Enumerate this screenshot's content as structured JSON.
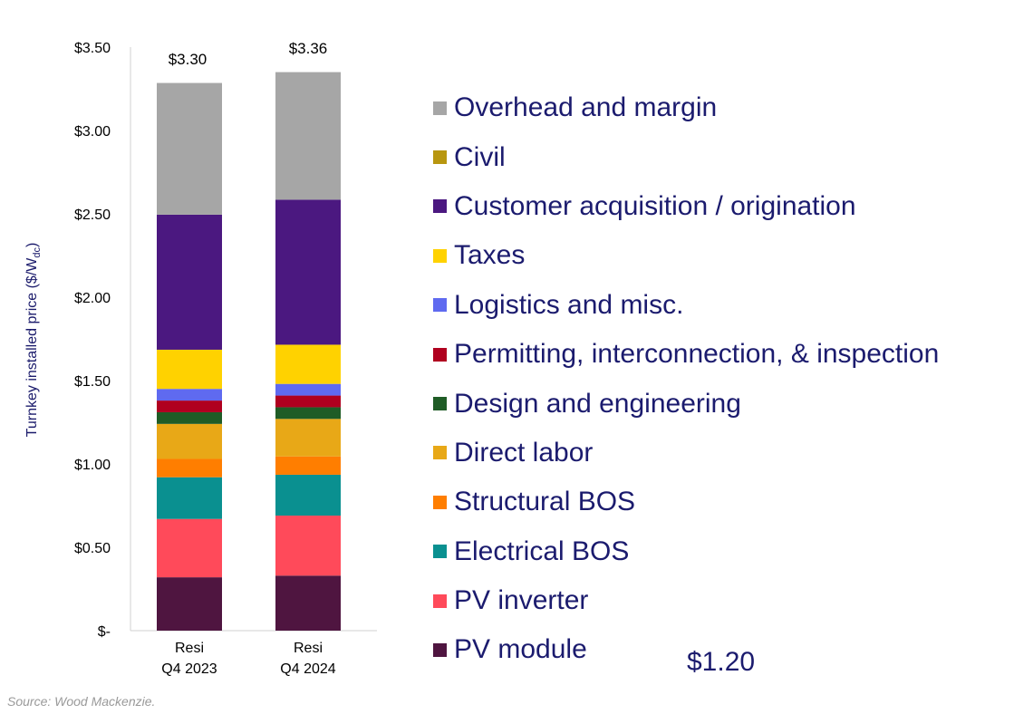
{
  "chart_data": {
    "type": "bar",
    "stacked": true,
    "ylabel": "Turnkey installed price ($/W",
    "ylabel_sub": "dc",
    "ylabel_close": ")",
    "ylim": [
      0,
      3.5
    ],
    "y_ticks": [
      0,
      0.5,
      1.0,
      1.5,
      2.0,
      2.5,
      3.0,
      3.5
    ],
    "y_tick_labels": [
      "$-",
      "$0.50",
      "$1.00",
      "$1.50",
      "$2.00",
      "$2.50",
      "$3.00",
      "$3.50"
    ],
    "categories": [
      [
        "Resi",
        "Q4 2023"
      ],
      [
        "Resi",
        "Q4 2024"
      ]
    ],
    "totals": [
      "$3.30",
      "$3.36"
    ],
    "legend_position": "right",
    "series": [
      {
        "name": "PV module",
        "color": "#4f1540",
        "values": [
          0.32,
          0.33
        ]
      },
      {
        "name": "PV inverter",
        "color": "#ff4a5a",
        "values": [
          0.35,
          0.36
        ]
      },
      {
        "name": "Electrical BOS",
        "color": "#0a9090",
        "values": [
          0.25,
          0.245
        ]
      },
      {
        "name": "Structural BOS",
        "color": "#ff7e00",
        "values": [
          0.11,
          0.11
        ]
      },
      {
        "name": "Direct labor",
        "color": "#e8a817",
        "values": [
          0.21,
          0.225
        ]
      },
      {
        "name": "Design and engineering",
        "color": "#1f5c26",
        "values": [
          0.07,
          0.07
        ]
      },
      {
        "name": "Permitting, interconnection, & inspection",
        "color": "#b0001f",
        "values": [
          0.07,
          0.07
        ]
      },
      {
        "name": "Logistics and misc.",
        "color": "#5f6af0",
        "values": [
          0.07,
          0.07
        ]
      },
      {
        "name": "Taxes",
        "color": "#ffd200",
        "values": [
          0.235,
          0.235
        ]
      },
      {
        "name": "Customer acquisition / origination",
        "color": "#4b1880",
        "values": [
          0.81,
          0.87
        ]
      },
      {
        "name": "Civil",
        "color": "#b8960f",
        "values": [
          0,
          0
        ]
      },
      {
        "name": "Overhead and margin",
        "color": "#a6a6a6",
        "values": [
          0.79,
          0.765
        ]
      }
    ],
    "legend_order": [
      "Overhead and margin",
      "Civil",
      "Customer acquisition / origination",
      "Taxes",
      "Logistics and misc.",
      "Permitting, interconnection, & inspection",
      "Design and engineering",
      "Direct labor",
      "Structural BOS",
      "Electrical BOS",
      "PV inverter",
      "PV module"
    ],
    "clipped_text": "$1.20"
  },
  "source": "Source: Wood Mackenzie."
}
